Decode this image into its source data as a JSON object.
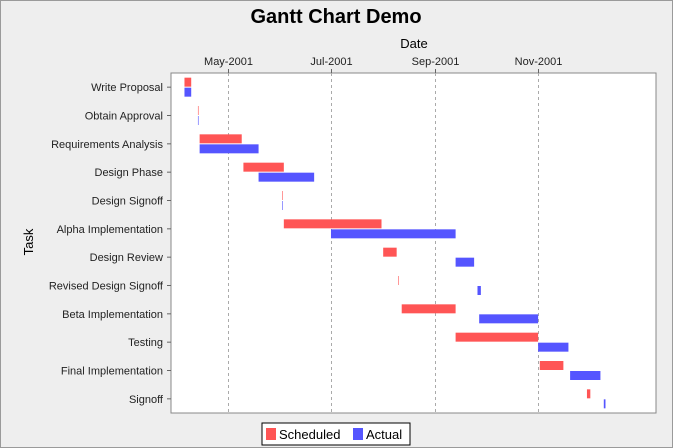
{
  "colors": {
    "scheduled": "#ff5555",
    "actual": "#5555ff",
    "background": "#eeeeee",
    "plot_background": "#ffffff",
    "gridline": "#aaaaaa"
  },
  "chart_data": {
    "type": "gantt",
    "title": "Gantt Chart Demo",
    "xlabel": "Date",
    "ylabel": "Task",
    "x_axis_position": "top",
    "xlim": [
      "2001-03-28",
      "2002-01-10"
    ],
    "x_ticks": [
      {
        "label": "May-2001",
        "date": "2001-05-01"
      },
      {
        "label": "Jul-2001",
        "date": "2001-07-01"
      },
      {
        "label": "Sep-2001",
        "date": "2001-09-01"
      },
      {
        "label": "Nov-2001",
        "date": "2001-11-01"
      }
    ],
    "grid": true,
    "legend_position": "bottom",
    "series": [
      {
        "name": "Scheduled",
        "color": "#ff5555"
      },
      {
        "name": "Actual",
        "color": "#5555ff"
      }
    ],
    "tasks": [
      {
        "name": "Write Proposal",
        "scheduled": [
          "2001-04-05",
          "2001-04-09"
        ],
        "actual": [
          "2001-04-05",
          "2001-04-09"
        ]
      },
      {
        "name": "Obtain Approval",
        "scheduled": [
          "2001-04-13",
          "2001-04-13"
        ],
        "actual": [
          "2001-04-13",
          "2001-04-13"
        ]
      },
      {
        "name": "Requirements Analysis",
        "scheduled": [
          "2001-04-14",
          "2001-05-09"
        ],
        "actual": [
          "2001-04-14",
          "2001-05-19"
        ]
      },
      {
        "name": "Design Phase",
        "scheduled": [
          "2001-05-10",
          "2001-06-03"
        ],
        "actual": [
          "2001-05-19",
          "2001-06-21"
        ]
      },
      {
        "name": "Design Signoff",
        "scheduled": [
          "2001-06-02",
          "2001-06-02"
        ],
        "actual": [
          "2001-06-02",
          "2001-06-02"
        ]
      },
      {
        "name": "Alpha Implementation",
        "scheduled": [
          "2001-06-03",
          "2001-07-31"
        ],
        "actual": [
          "2001-07-01",
          "2001-09-13"
        ]
      },
      {
        "name": "Design Review",
        "scheduled": [
          "2001-08-01",
          "2001-08-09"
        ],
        "actual": [
          "2001-09-13",
          "2001-09-24"
        ]
      },
      {
        "name": "Revised Design Signoff",
        "scheduled": [
          "2001-08-10",
          "2001-08-10"
        ],
        "actual": [
          "2001-09-26",
          "2001-09-28"
        ]
      },
      {
        "name": "Beta Implementation",
        "scheduled": [
          "2001-08-12",
          "2001-09-13"
        ],
        "actual": [
          "2001-09-27",
          "2001-11-01"
        ]
      },
      {
        "name": "Testing",
        "scheduled": [
          "2001-09-13",
          "2001-11-01"
        ],
        "actual": [
          "2001-11-01",
          "2001-11-19"
        ]
      },
      {
        "name": "Final Implementation",
        "scheduled": [
          "2001-11-02",
          "2001-11-16"
        ],
        "actual": [
          "2001-11-20",
          "2001-12-08"
        ]
      },
      {
        "name": "Signoff",
        "scheduled": [
          "2001-11-30",
          "2001-12-02"
        ],
        "actual": [
          "2001-12-10",
          "2001-12-11"
        ]
      }
    ]
  }
}
